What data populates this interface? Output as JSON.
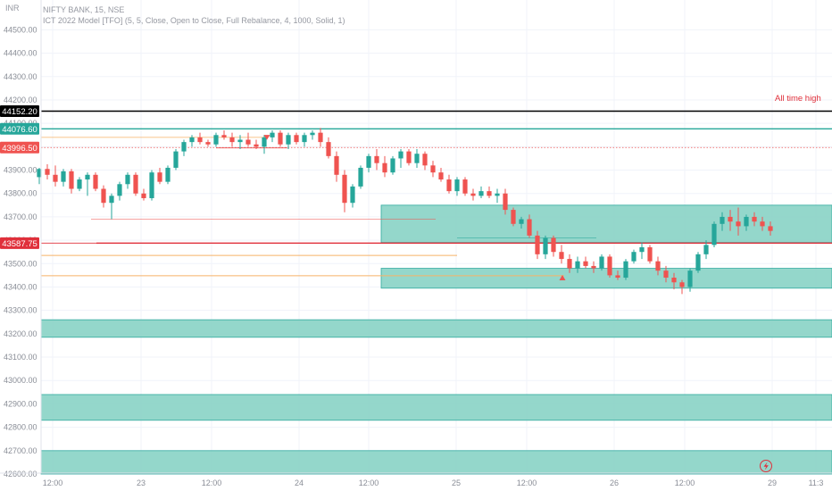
{
  "currency": "INR",
  "header": {
    "symbol_line": "NIFTY BANK, 15, NSE",
    "indicator_line": "ICT 2022 Model [TFO] (5, 5, Close, Open to Close, Full Rebalance, 4, 1000, Solid, 1)"
  },
  "colors": {
    "up": "#26a69a",
    "down": "#ef5350",
    "zone": "#8fd5c9",
    "zone_edge": "#26a69a",
    "ath": "#000000",
    "level_green": "#26a69a",
    "level_red": "#e0303b",
    "swing": "#f7b267"
  },
  "price_tags": [
    {
      "label": "44152.20",
      "price": 44152.2,
      "color": "#000000",
      "name": "tag-ath"
    },
    {
      "label": "44076.60",
      "price": 44076.6,
      "color": "#26a69a",
      "name": "tag-green-level"
    },
    {
      "label": "43996.50",
      "price": 43996.5,
      "color": "#ef5350",
      "name": "tag-last-price"
    },
    {
      "label": "43587.75",
      "price": 43587.75,
      "color": "#e0303b",
      "name": "tag-red-level"
    }
  ],
  "annotation_ath": "All time high",
  "chart_data": {
    "type": "candlestick",
    "ylim": [
      42560,
      44560
    ],
    "yticks": [
      "44500.00",
      "44400.00",
      "44300.00",
      "44200.00",
      "44100.00",
      "44000.00",
      "43900.00",
      "43800.00",
      "43700.00",
      "43600.00",
      "43500.00",
      "43400.00",
      "43300.00",
      "43200.00",
      "43100.00",
      "43000.00",
      "42900.00",
      "42800.00",
      "42700.00",
      "42600.00"
    ],
    "xticks": [
      "12:00",
      "23",
      "12:00",
      "24",
      "12:00",
      "25",
      "12:00",
      "26",
      "12:00",
      "29",
      "11:3"
    ],
    "xtick_index": [
      2,
      16,
      24,
      32,
      40,
      48,
      56,
      64,
      72,
      80,
      86
    ],
    "levels": [
      {
        "name": "all-time-high",
        "price": 44152.2,
        "label": "All time high"
      },
      {
        "name": "green-level",
        "price": 44076.6
      },
      {
        "name": "last-price",
        "price": 43996.5
      },
      {
        "name": "red-level",
        "price": 43587.75
      }
    ],
    "zones": [
      {
        "name": "zone-upper",
        "from": 43590,
        "to": 43750,
        "start": 35
      },
      {
        "name": "zone-lower",
        "from": 43395,
        "to": 43480,
        "start": 35
      },
      {
        "name": "zone-43200",
        "from": 43185,
        "to": 43260,
        "start": 0
      },
      {
        "name": "zone-42900",
        "from": 42830,
        "to": 42940,
        "start": 0
      },
      {
        "name": "zone-42650",
        "from": 42600,
        "to": 42700,
        "start": 0
      }
    ],
    "candles": [
      [
        43870,
        43910,
        43840,
        43905
      ],
      [
        43905,
        43925,
        43860,
        43880
      ],
      [
        43880,
        43920,
        43830,
        43850
      ],
      [
        43850,
        43905,
        43830,
        43895
      ],
      [
        43895,
        43905,
        43800,
        43820
      ],
      [
        43820,
        43870,
        43810,
        43860
      ],
      [
        43860,
        43890,
        43790,
        43880
      ],
      [
        43880,
        43890,
        43810,
        43820
      ],
      [
        43820,
        43835,
        43740,
        43760
      ],
      [
        43760,
        43800,
        43690,
        43790
      ],
      [
        43790,
        43850,
        43770,
        43840
      ],
      [
        43840,
        43890,
        43820,
        43880
      ],
      [
        43880,
        43890,
        43790,
        43800
      ],
      [
        43800,
        43820,
        43770,
        43780
      ],
      [
        43780,
        43900,
        43770,
        43890
      ],
      [
        43890,
        43910,
        43840,
        43850
      ],
      [
        43850,
        43920,
        43840,
        43910
      ],
      [
        43910,
        43990,
        43900,
        43980
      ],
      [
        43980,
        44030,
        43960,
        44020
      ],
      [
        44020,
        44050,
        44000,
        44040
      ],
      [
        44040,
        44060,
        44010,
        44020
      ],
      [
        44020,
        44030,
        44000,
        44010
      ],
      [
        44010,
        44060,
        44000,
        44050
      ],
      [
        44050,
        44070,
        44030,
        44040
      ],
      [
        44040,
        44060,
        44000,
        44020
      ],
      [
        44020,
        44050,
        43990,
        44030
      ],
      [
        44030,
        44060,
        44000,
        44010
      ],
      [
        44010,
        44030,
        43990,
        44000
      ],
      [
        44000,
        44050,
        43970,
        44040
      ],
      [
        44040,
        44070,
        44020,
        44060
      ],
      [
        44060,
        44070,
        44000,
        44010
      ],
      [
        44010,
        44060,
        43990,
        44050
      ],
      [
        44050,
        44060,
        44010,
        44020
      ],
      [
        44020,
        44060,
        44000,
        44050
      ],
      [
        44050,
        44070,
        44030,
        44060
      ],
      [
        44060,
        44080,
        44000,
        44020
      ],
      [
        44020,
        44040,
        43950,
        43960
      ],
      [
        43960,
        43980,
        43850,
        43880
      ],
      [
        43880,
        43900,
        43720,
        43760
      ],
      [
        43760,
        43840,
        43740,
        43830
      ],
      [
        43830,
        43920,
        43820,
        43910
      ],
      [
        43910,
        43970,
        43890,
        43960
      ],
      [
        43960,
        43990,
        43900,
        43930
      ],
      [
        43930,
        43960,
        43870,
        43890
      ],
      [
        43890,
        43960,
        43880,
        43950
      ],
      [
        43950,
        43990,
        43910,
        43980
      ],
      [
        43980,
        43990,
        43920,
        43930
      ],
      [
        43930,
        43990,
        43910,
        43970
      ],
      [
        43970,
        43980,
        43900,
        43920
      ],
      [
        43920,
        43940,
        43870,
        43890
      ],
      [
        43890,
        43910,
        43850,
        43860
      ],
      [
        43860,
        43880,
        43800,
        43810
      ],
      [
        43810,
        43870,
        43790,
        43860
      ],
      [
        43860,
        43870,
        43790,
        43800
      ],
      [
        43800,
        43820,
        43770,
        43790
      ],
      [
        43790,
        43830,
        43780,
        43810
      ],
      [
        43810,
        43830,
        43780,
        43790
      ],
      [
        43790,
        43820,
        43760,
        43800
      ],
      [
        43800,
        43820,
        43710,
        43730
      ],
      [
        43730,
        43740,
        43660,
        43670
      ],
      [
        43670,
        43700,
        43650,
        43690
      ],
      [
        43690,
        43710,
        43610,
        43620
      ],
      [
        43620,
        43640,
        43520,
        43540
      ],
      [
        43540,
        43620,
        43520,
        43610
      ],
      [
        43610,
        43620,
        43530,
        43550
      ],
      [
        43550,
        43580,
        43500,
        43520
      ],
      [
        43520,
        43540,
        43460,
        43480
      ],
      [
        43480,
        43530,
        43460,
        43510
      ],
      [
        43510,
        43530,
        43480,
        43490
      ],
      [
        43490,
        43510,
        43460,
        43480
      ],
      [
        43480,
        43540,
        43470,
        43530
      ],
      [
        43530,
        43540,
        43440,
        43450
      ],
      [
        43450,
        43470,
        43430,
        43440
      ],
      [
        43440,
        43520,
        43430,
        43510
      ],
      [
        43510,
        43560,
        43500,
        43550
      ],
      [
        43550,
        43590,
        43520,
        43570
      ],
      [
        43570,
        43580,
        43500,
        43510
      ],
      [
        43510,
        43530,
        43450,
        43470
      ],
      [
        43470,
        43490,
        43420,
        43440
      ],
      [
        43440,
        43460,
        43390,
        43420
      ],
      [
        43420,
        43430,
        43370,
        43400
      ],
      [
        43400,
        43480,
        43380,
        43470
      ],
      [
        43470,
        43550,
        43460,
        43540
      ],
      [
        43540,
        43600,
        43520,
        43580
      ],
      [
        43580,
        43680,
        43570,
        43670
      ],
      [
        43670,
        43720,
        43640,
        43700
      ],
      [
        43700,
        43730,
        43640,
        43680
      ],
      [
        43680,
        43740,
        43620,
        43660
      ],
      [
        43660,
        43710,
        43640,
        43700
      ],
      [
        43700,
        43720,
        43660,
        43680
      ],
      [
        43680,
        43700,
        43640,
        43660
      ],
      [
        43660,
        43680,
        43620,
        43640
      ],
      [
        43640,
        43680,
        43630,
        43670
      ],
      [
        43670,
        43690,
        43640,
        43650
      ],
      [
        43650,
        43700,
        43640,
        43690
      ],
      [
        43690,
        43740,
        43680,
        43730
      ],
      [
        43730,
        43760,
        43700,
        43740
      ],
      [
        43740,
        43770,
        43720,
        43760
      ],
      [
        43760,
        43800,
        43750,
        43790
      ],
      [
        43790,
        43810,
        43760,
        43780
      ],
      [
        43780,
        43850,
        43770,
        43840
      ],
      [
        43840,
        43890,
        43830,
        43880
      ],
      [
        43880,
        43900,
        43850,
        43870
      ],
      [
        43870,
        43910,
        43860,
        43880
      ],
      [
        43880,
        43950,
        43870,
        43940
      ],
      [
        43940,
        44010,
        43930,
        44000
      ],
      [
        44000,
        44060,
        43990,
        44050
      ],
      [
        44050,
        44060,
        44000,
        44010
      ],
      [
        44010,
        44040,
        43980,
        44030
      ],
      [
        44030,
        44050,
        43980,
        43990
      ],
      [
        43990,
        44060,
        43980,
        44040
      ],
      [
        44040,
        44050,
        43980,
        43995
      ]
    ],
    "markers": [
      {
        "name": "swing-high-marker",
        "type": "down-triangle",
        "index": 32,
        "price": 44100
      },
      {
        "name": "swing-low-marker",
        "type": "up-triangle",
        "index": 81,
        "price": 43350
      }
    ]
  }
}
